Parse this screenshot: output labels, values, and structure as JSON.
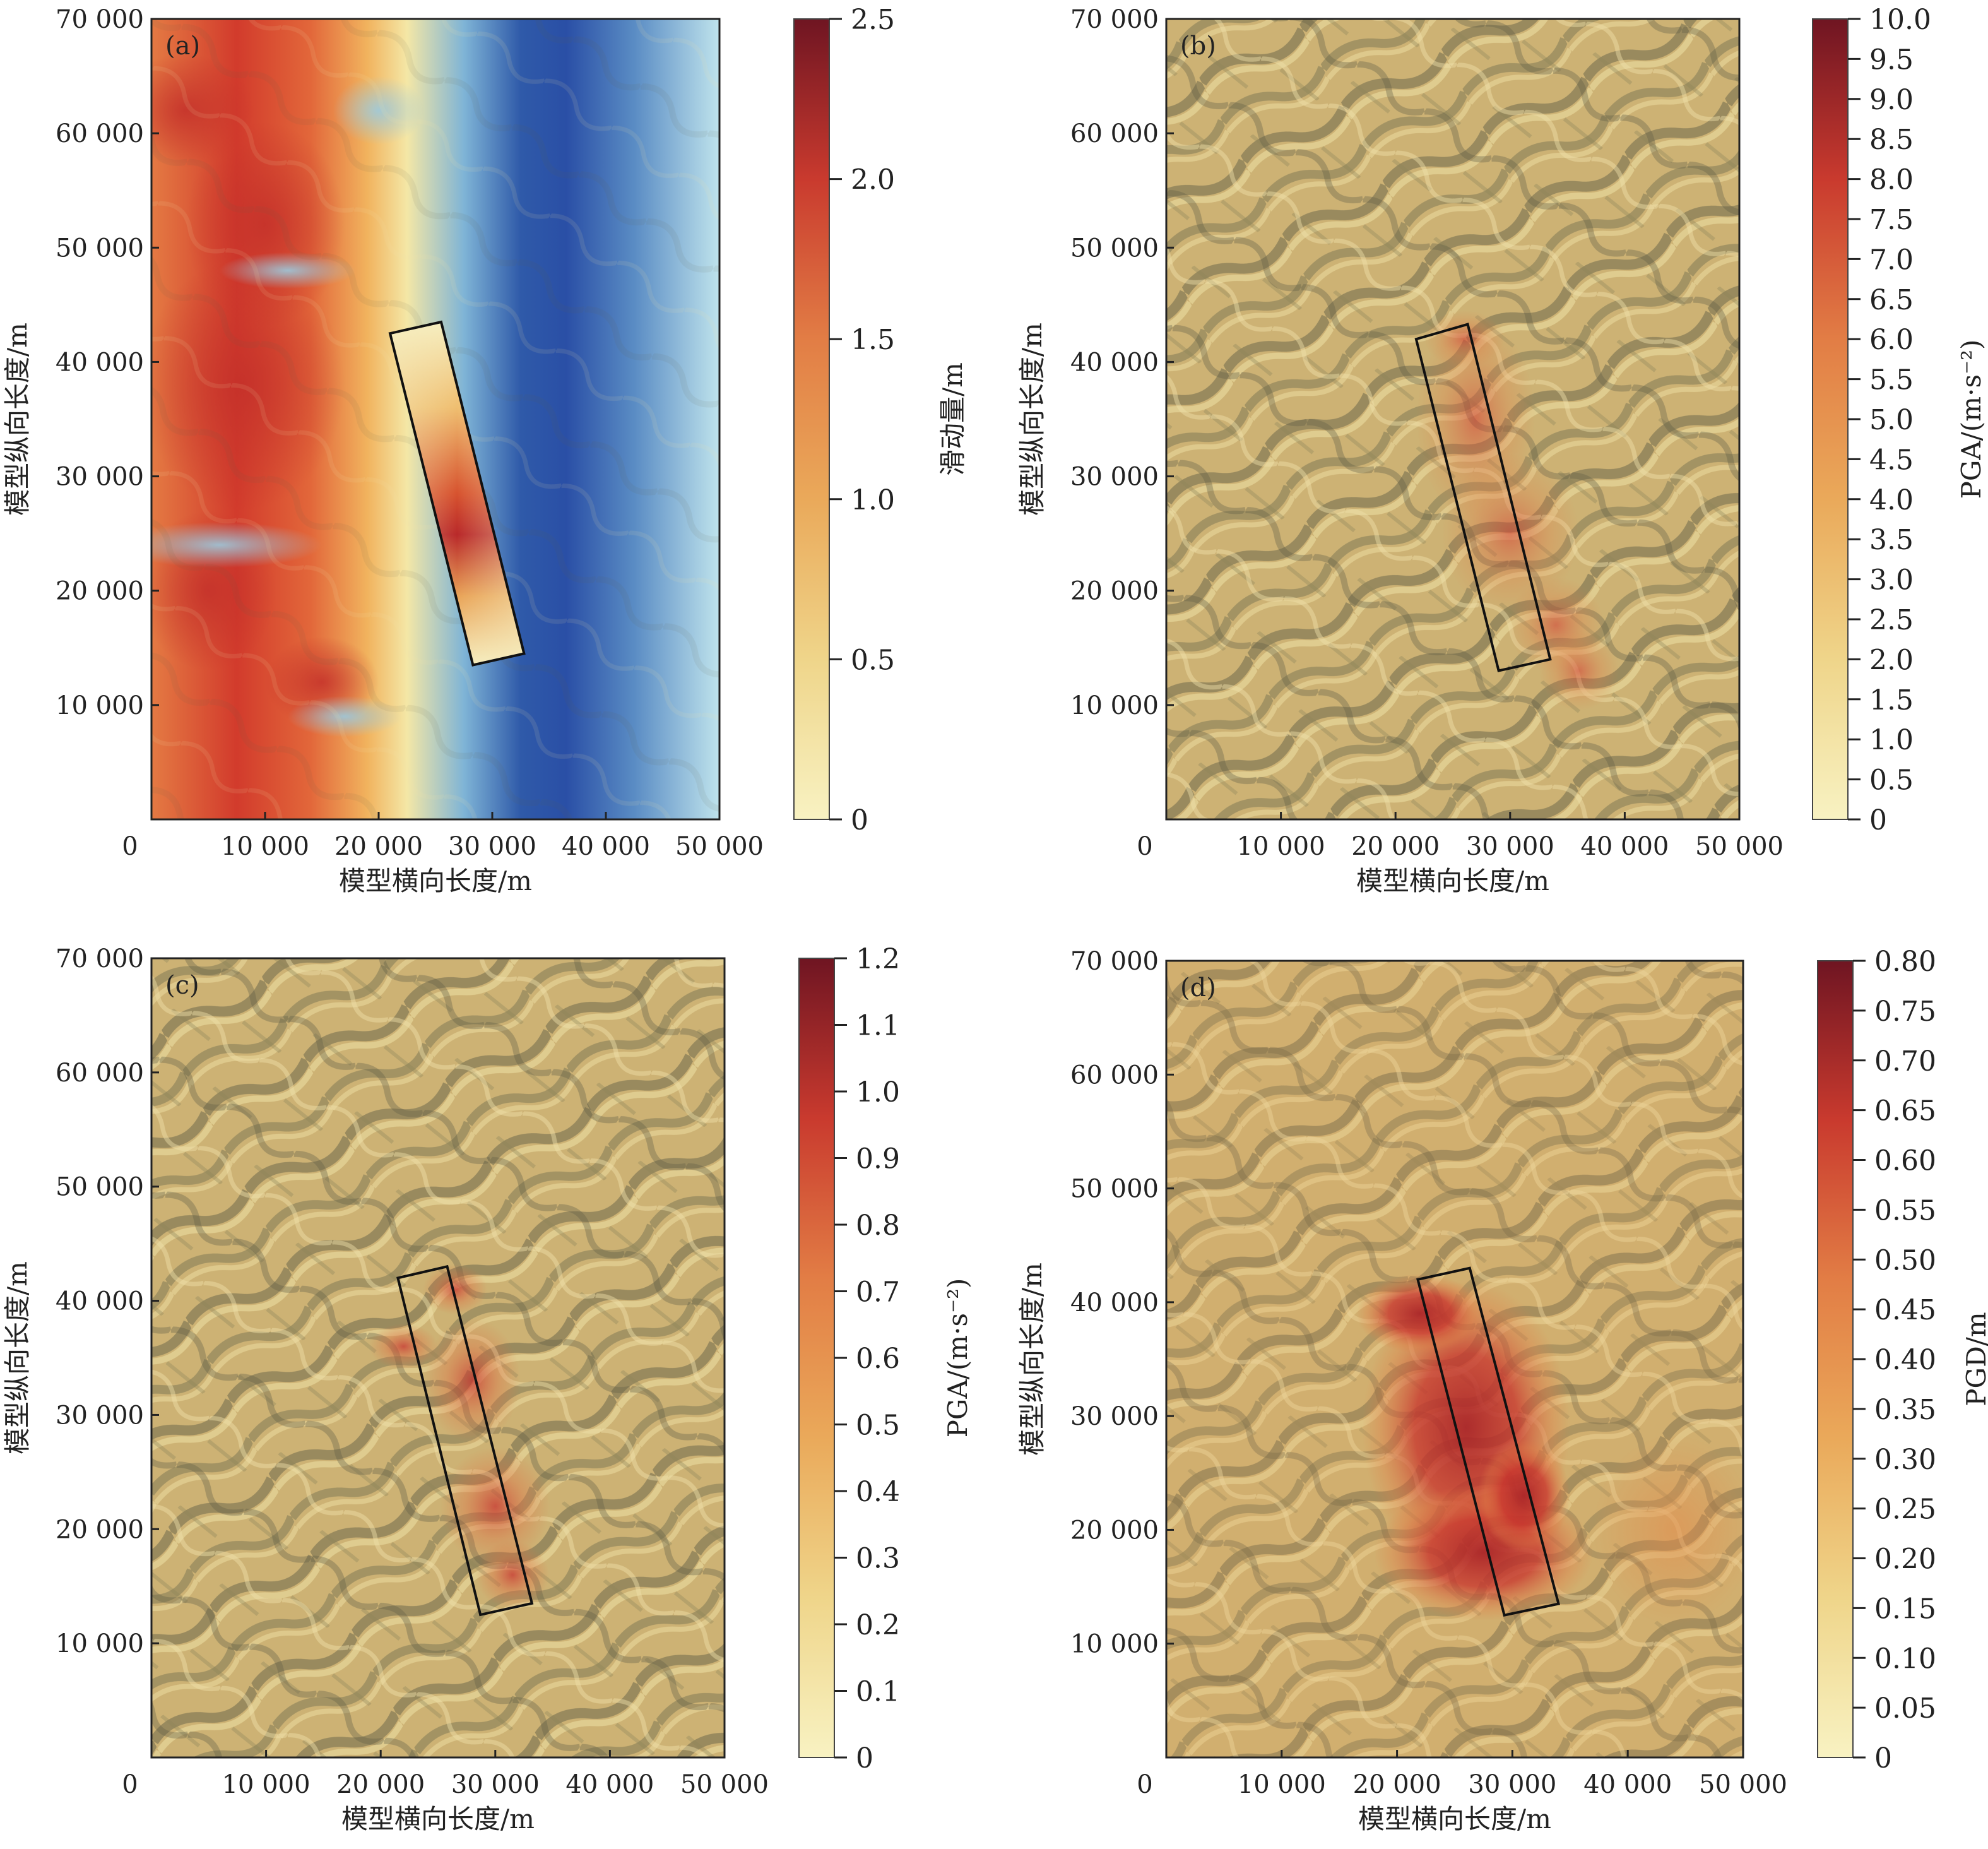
{
  "chart_data": [
    {
      "type": "heatmap",
      "panel_label": "(a)",
      "xlabel": "模型横向长度/m",
      "ylabel": "模型纵向长度/m",
      "xlim": [
        0,
        50000
      ],
      "ylim": [
        0,
        70000
      ],
      "x_ticks": [
        "0",
        "10 000",
        "20 000",
        "30 000",
        "40 000",
        "50 000"
      ],
      "y_ticks": [
        "10 000",
        "20 000",
        "30 000",
        "40 000",
        "50 000",
        "60 000",
        "70 000"
      ],
      "colorbar": {
        "label": "滑动量/m",
        "range": [
          0,
          2.5
        ],
        "ticks": [
          "0",
          "0.5",
          "1.0",
          "1.5",
          "2.0",
          "2.5"
        ]
      },
      "background": "topography (elevation colormap, red high to blue low)",
      "fault_rectangle": [
        [
          21000,
          42500
        ],
        [
          25500,
          43500
        ],
        [
          32800,
          14500
        ],
        [
          28300,
          13500
        ]
      ]
    },
    {
      "type": "heatmap",
      "panel_label": "(b)",
      "xlabel": "模型横向长度/m",
      "ylabel": "模型纵向长度/m",
      "xlim": [
        0,
        50000
      ],
      "ylim": [
        0,
        70000
      ],
      "x_ticks": [
        "0",
        "10 000",
        "20 000",
        "30 000",
        "40 000",
        "50 000"
      ],
      "y_ticks": [
        "10 000",
        "20 000",
        "30 000",
        "40 000",
        "50 000",
        "60 000",
        "70 000"
      ],
      "colorbar": {
        "label": "PGA/(m·s⁻²)",
        "range": [
          0,
          10
        ],
        "ticks": [
          "0",
          "0.5",
          "1.0",
          "1.5",
          "2.0",
          "2.5",
          "3.0",
          "3.5",
          "4.0",
          "4.5",
          "5.0",
          "5.5",
          "6.0",
          "6.5",
          "7.0",
          "7.5",
          "8.0",
          "8.5",
          "9.0",
          "9.5",
          "10.0"
        ]
      },
      "fault_rectangle": [
        [
          21800,
          42000
        ],
        [
          26300,
          43300
        ],
        [
          33500,
          14000
        ],
        [
          29000,
          13000
        ]
      ]
    },
    {
      "type": "heatmap",
      "panel_label": "(c)",
      "xlabel": "模型横向长度/m",
      "ylabel": "模型纵向长度/m",
      "xlim": [
        0,
        50000
      ],
      "ylim": [
        0,
        70000
      ],
      "x_ticks": [
        "0",
        "10 000",
        "20 000",
        "30 000",
        "40 000",
        "50 000"
      ],
      "y_ticks": [
        "10 000",
        "20 000",
        "30 000",
        "40 000",
        "50 000",
        "60 000",
        "70 000"
      ],
      "colorbar": {
        "label": "PGA/(m·s⁻²)",
        "range": [
          0,
          1.2
        ],
        "ticks": [
          "0",
          "0.1",
          "0.2",
          "0.3",
          "0.4",
          "0.5",
          "0.6",
          "0.7",
          "0.8",
          "0.9",
          "1.0",
          "1.1",
          "1.2"
        ]
      },
      "fault_rectangle": [
        [
          21500,
          42000
        ],
        [
          25800,
          43000
        ],
        [
          33200,
          13500
        ],
        [
          28700,
          12500
        ]
      ]
    },
    {
      "type": "heatmap",
      "panel_label": "(d)",
      "xlabel": "模型横向长度/m",
      "ylabel": "模型纵向长度/m",
      "xlim": [
        0,
        50000
      ],
      "ylim": [
        0,
        70000
      ],
      "x_ticks": [
        "0",
        "10 000",
        "20 000",
        "30 000",
        "40 000",
        "50 000"
      ],
      "y_ticks": [
        "10 000",
        "20 000",
        "30 000",
        "40 000",
        "50 000",
        "60 000",
        "70 000"
      ],
      "colorbar": {
        "label": "PGD/m",
        "range": [
          0,
          0.8
        ],
        "ticks": [
          "0",
          "0.05",
          "0.10",
          "0.15",
          "0.20",
          "0.25",
          "0.30",
          "0.35",
          "0.40",
          "0.45",
          "0.50",
          "0.55",
          "0.60",
          "0.65",
          "0.70",
          "0.75",
          "0.80"
        ]
      },
      "fault_rectangle": [
        [
          21800,
          42000
        ],
        [
          26300,
          43000
        ],
        [
          34000,
          13500
        ],
        [
          29300,
          12500
        ]
      ]
    }
  ]
}
